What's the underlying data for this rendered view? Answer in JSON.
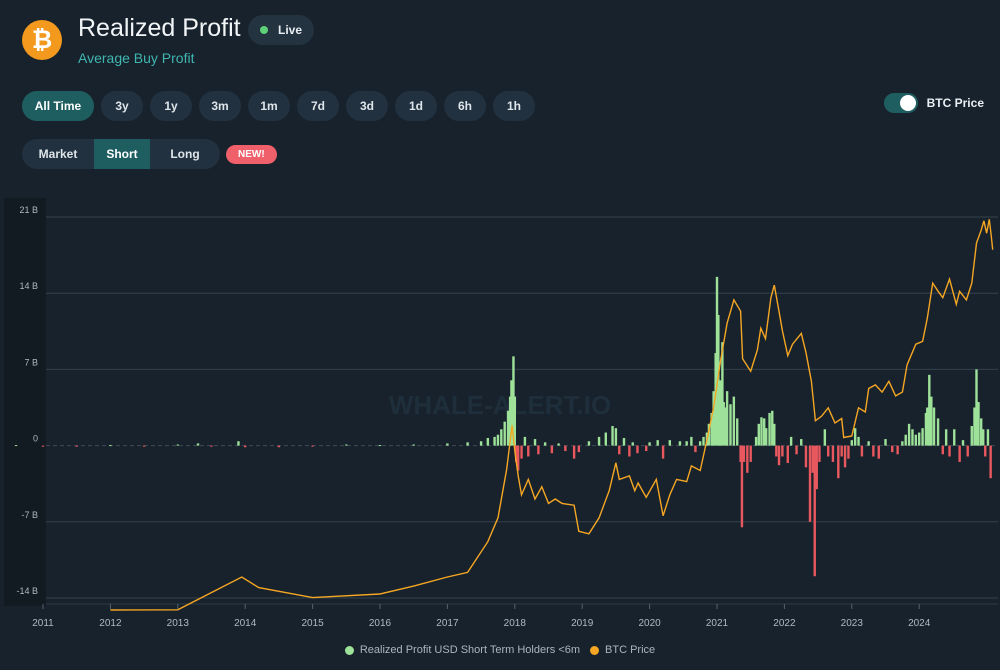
{
  "header": {
    "coin_symbol": "₿",
    "title": "Realized Profit",
    "subtitle": "Average Buy Profit",
    "live_label": "Live"
  },
  "time_ranges": [
    "All Time",
    "3y",
    "1y",
    "3m",
    "1m",
    "7d",
    "3d",
    "1d",
    "6h",
    "1h"
  ],
  "active_range": "All Time",
  "btc_toggle": {
    "label": "BTC Price",
    "on": true
  },
  "holder_tabs": [
    "Market",
    "Short",
    "Long"
  ],
  "active_holder_tab": "Short",
  "new_badge": "NEW!",
  "watermark": "WHALE-ALERT.IO",
  "colors": {
    "background": "#18222c",
    "accent": "#1f5e60",
    "profit": "#9ee29a",
    "loss": "#e8585e",
    "price": "#f5a623",
    "live": "#5fd07a"
  },
  "chart_data": {
    "type": "bar",
    "title": "",
    "xlabel": "",
    "ylabel": "",
    "ylim": [
      -14,
      21
    ],
    "y_ticks": [
      21,
      14,
      7,
      0,
      -7,
      -14
    ],
    "y_tick_labels": [
      "21 B",
      "14 B",
      "7 B",
      "0",
      "-7 B",
      "-14 B"
    ],
    "x_ticks": [
      "2011",
      "2012",
      "2013",
      "2014",
      "2015",
      "2016",
      "2017",
      "2018",
      "2019",
      "2020",
      "2021",
      "2022",
      "2023",
      "2024"
    ],
    "legend_position": "bottom",
    "grid": true,
    "series": [
      {
        "name": "Realized Profit USD Short Term Holders <6m",
        "kind": "bar",
        "unit": "B USD",
        "points": [
          [
            2010.6,
            0.05
          ],
          [
            2011.0,
            -0.1
          ],
          [
            2011.5,
            -0.1
          ],
          [
            2012.0,
            0.05
          ],
          [
            2012.5,
            -0.1
          ],
          [
            2013.0,
            0.1
          ],
          [
            2013.3,
            0.2
          ],
          [
            2013.5,
            -0.1
          ],
          [
            2013.9,
            0.4
          ],
          [
            2014.0,
            -0.15
          ],
          [
            2014.5,
            -0.15
          ],
          [
            2015.0,
            -0.1
          ],
          [
            2015.5,
            0.1
          ],
          [
            2016.0,
            0.05
          ],
          [
            2016.5,
            0.1
          ],
          [
            2017.0,
            0.2
          ],
          [
            2017.3,
            0.3
          ],
          [
            2017.5,
            0.4
          ],
          [
            2017.6,
            0.7
          ],
          [
            2017.7,
            0.8
          ],
          [
            2017.75,
            1.0
          ],
          [
            2017.8,
            1.5
          ],
          [
            2017.85,
            2.2
          ],
          [
            2017.9,
            3.2
          ],
          [
            2017.93,
            4.5
          ],
          [
            2017.95,
            6.0
          ],
          [
            2017.98,
            8.2
          ],
          [
            2018.0,
            4.5
          ],
          [
            2018.02,
            -1.5
          ],
          [
            2018.05,
            -2.3
          ],
          [
            2018.1,
            -1.2
          ],
          [
            2018.15,
            0.8
          ],
          [
            2018.2,
            -1.0
          ],
          [
            2018.3,
            0.6
          ],
          [
            2018.35,
            -0.8
          ],
          [
            2018.45,
            0.3
          ],
          [
            2018.55,
            -0.7
          ],
          [
            2018.65,
            0.2
          ],
          [
            2018.75,
            -0.5
          ],
          [
            2018.88,
            -1.2
          ],
          [
            2018.95,
            -0.6
          ],
          [
            2019.1,
            0.4
          ],
          [
            2019.25,
            0.8
          ],
          [
            2019.35,
            1.2
          ],
          [
            2019.45,
            1.8
          ],
          [
            2019.5,
            1.6
          ],
          [
            2019.55,
            -0.8
          ],
          [
            2019.62,
            0.7
          ],
          [
            2019.7,
            -1.0
          ],
          [
            2019.75,
            0.3
          ],
          [
            2019.82,
            -0.7
          ],
          [
            2019.95,
            -0.5
          ],
          [
            2020.0,
            0.3
          ],
          [
            2020.12,
            0.5
          ],
          [
            2020.2,
            -1.2
          ],
          [
            2020.3,
            0.5
          ],
          [
            2020.45,
            0.4
          ],
          [
            2020.55,
            0.4
          ],
          [
            2020.62,
            0.8
          ],
          [
            2020.68,
            -0.6
          ],
          [
            2020.75,
            0.4
          ],
          [
            2020.8,
            0.8
          ],
          [
            2020.85,
            1.2
          ],
          [
            2020.88,
            2.0
          ],
          [
            2020.92,
            3.0
          ],
          [
            2020.95,
            5.0
          ],
          [
            2020.98,
            8.5
          ],
          [
            2021.0,
            15.5
          ],
          [
            2021.02,
            12.0
          ],
          [
            2021.05,
            6.0
          ],
          [
            2021.08,
            9.5
          ],
          [
            2021.1,
            4.0
          ],
          [
            2021.13,
            3.5
          ],
          [
            2021.15,
            5.0
          ],
          [
            2021.2,
            3.8
          ],
          [
            2021.25,
            4.5
          ],
          [
            2021.3,
            2.5
          ],
          [
            2021.35,
            -1.5
          ],
          [
            2021.37,
            -7.5
          ],
          [
            2021.4,
            -1.5
          ],
          [
            2021.45,
            -2.5
          ],
          [
            2021.5,
            -1.5
          ],
          [
            2021.58,
            0.8
          ],
          [
            2021.62,
            2.0
          ],
          [
            2021.66,
            2.6
          ],
          [
            2021.7,
            2.5
          ],
          [
            2021.73,
            1.6
          ],
          [
            2021.78,
            3.0
          ],
          [
            2021.82,
            3.2
          ],
          [
            2021.85,
            2.0
          ],
          [
            2021.88,
            -1.0
          ],
          [
            2021.92,
            -1.8
          ],
          [
            2021.97,
            -1.0
          ],
          [
            2022.05,
            -1.6
          ],
          [
            2022.1,
            0.8
          ],
          [
            2022.18,
            -0.8
          ],
          [
            2022.25,
            0.6
          ],
          [
            2022.32,
            -2.0
          ],
          [
            2022.38,
            -7.0
          ],
          [
            2022.42,
            -2.5
          ],
          [
            2022.45,
            -12.0
          ],
          [
            2022.48,
            -4.0
          ],
          [
            2022.52,
            -1.5
          ],
          [
            2022.6,
            1.5
          ],
          [
            2022.65,
            -1.0
          ],
          [
            2022.72,
            -1.5
          ],
          [
            2022.8,
            -3.0
          ],
          [
            2022.85,
            -1.0
          ],
          [
            2022.9,
            -2.0
          ],
          [
            2022.95,
            -1.2
          ],
          [
            2023.0,
            0.5
          ],
          [
            2023.05,
            1.6
          ],
          [
            2023.1,
            0.8
          ],
          [
            2023.15,
            -1.0
          ],
          [
            2023.25,
            0.4
          ],
          [
            2023.32,
            -1.0
          ],
          [
            2023.4,
            -1.2
          ],
          [
            2023.5,
            0.6
          ],
          [
            2023.6,
            -0.6
          ],
          [
            2023.68,
            -0.8
          ],
          [
            2023.75,
            0.4
          ],
          [
            2023.8,
            1.0
          ],
          [
            2023.85,
            2.0
          ],
          [
            2023.9,
            1.5
          ],
          [
            2023.95,
            1.0
          ],
          [
            2024.0,
            1.2
          ],
          [
            2024.05,
            1.6
          ],
          [
            2024.1,
            3.0
          ],
          [
            2024.12,
            3.5
          ],
          [
            2024.15,
            6.5
          ],
          [
            2024.18,
            4.5
          ],
          [
            2024.22,
            3.5
          ],
          [
            2024.28,
            2.5
          ],
          [
            2024.35,
            -0.8
          ],
          [
            2024.4,
            1.5
          ],
          [
            2024.45,
            -1.0
          ],
          [
            2024.52,
            1.5
          ],
          [
            2024.6,
            -1.5
          ],
          [
            2024.65,
            0.5
          ],
          [
            2024.72,
            -1.0
          ],
          [
            2024.78,
            1.8
          ],
          [
            2024.82,
            3.5
          ],
          [
            2024.85,
            7.0
          ],
          [
            2024.88,
            4.0
          ],
          [
            2024.92,
            2.5
          ],
          [
            2024.95,
            1.5
          ],
          [
            2024.98,
            -1.0
          ],
          [
            2025.02,
            1.5
          ],
          [
            2025.06,
            -3.0
          ]
        ]
      },
      {
        "name": "BTC Price",
        "kind": "line",
        "unit": "USD",
        "points": [
          [
            2012.0,
            5
          ],
          [
            2013.0,
            15
          ],
          [
            2013.95,
            1000
          ],
          [
            2014.2,
            600
          ],
          [
            2015.0,
            300
          ],
          [
            2016.0,
            400
          ],
          [
            2016.5,
            650
          ],
          [
            2017.0,
            1000
          ],
          [
            2017.3,
            1200
          ],
          [
            2017.6,
            3000
          ],
          [
            2017.75,
            5000
          ],
          [
            2017.88,
            11000
          ],
          [
            2017.96,
            19000
          ],
          [
            2018.0,
            14000
          ],
          [
            2018.05,
            10000
          ],
          [
            2018.1,
            7500
          ],
          [
            2018.2,
            9500
          ],
          [
            2018.3,
            7000
          ],
          [
            2018.4,
            8500
          ],
          [
            2018.5,
            6500
          ],
          [
            2018.6,
            7000
          ],
          [
            2018.7,
            6500
          ],
          [
            2018.88,
            6300
          ],
          [
            2018.95,
            3800
          ],
          [
            2019.1,
            3600
          ],
          [
            2019.25,
            5000
          ],
          [
            2019.4,
            8000
          ],
          [
            2019.5,
            12000
          ],
          [
            2019.55,
            9500
          ],
          [
            2019.7,
            10000
          ],
          [
            2019.78,
            8000
          ],
          [
            2019.83,
            9000
          ],
          [
            2019.95,
            7200
          ],
          [
            2020.1,
            9500
          ],
          [
            2020.2,
            5200
          ],
          [
            2020.3,
            7500
          ],
          [
            2020.4,
            9500
          ],
          [
            2020.55,
            9200
          ],
          [
            2020.62,
            11500
          ],
          [
            2020.75,
            10800
          ],
          [
            2020.85,
            16000
          ],
          [
            2020.95,
            23000
          ],
          [
            2021.05,
            36000
          ],
          [
            2021.15,
            50000
          ],
          [
            2021.25,
            60000
          ],
          [
            2021.35,
            55000
          ],
          [
            2021.38,
            37000
          ],
          [
            2021.5,
            33000
          ],
          [
            2021.6,
            40000
          ],
          [
            2021.65,
            48000
          ],
          [
            2021.72,
            44000
          ],
          [
            2021.8,
            61000
          ],
          [
            2021.85,
            67000
          ],
          [
            2021.92,
            55000
          ],
          [
            2021.97,
            47000
          ],
          [
            2022.05,
            38000
          ],
          [
            2022.12,
            42000
          ],
          [
            2022.25,
            46000
          ],
          [
            2022.32,
            39000
          ],
          [
            2022.4,
            30000
          ],
          [
            2022.46,
            20000
          ],
          [
            2022.55,
            21000
          ],
          [
            2022.65,
            23000
          ],
          [
            2022.75,
            19500
          ],
          [
            2022.85,
            20500
          ],
          [
            2022.88,
            16500
          ],
          [
            2023.0,
            16800
          ],
          [
            2023.1,
            23000
          ],
          [
            2023.2,
            22000
          ],
          [
            2023.25,
            28000
          ],
          [
            2023.35,
            29000
          ],
          [
            2023.45,
            27000
          ],
          [
            2023.55,
            30000
          ],
          [
            2023.65,
            26000
          ],
          [
            2023.75,
            27000
          ],
          [
            2023.82,
            35000
          ],
          [
            2023.95,
            42000
          ],
          [
            2024.05,
            43000
          ],
          [
            2024.12,
            52000
          ],
          [
            2024.2,
            68000
          ],
          [
            2024.28,
            64000
          ],
          [
            2024.35,
            61000
          ],
          [
            2024.45,
            70000
          ],
          [
            2024.55,
            58000
          ],
          [
            2024.6,
            64000
          ],
          [
            2024.7,
            60000
          ],
          [
            2024.78,
            68000
          ],
          [
            2024.85,
            90000
          ],
          [
            2024.92,
            98000
          ],
          [
            2024.96,
            104000
          ],
          [
            2025.0,
            96000
          ],
          [
            2025.04,
            105000
          ],
          [
            2025.07,
            94000
          ],
          [
            2025.09,
            86000
          ]
        ]
      }
    ]
  }
}
